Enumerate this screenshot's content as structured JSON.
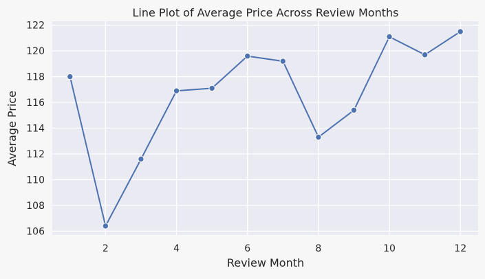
{
  "chart_data": {
    "type": "line",
    "title": "Line Plot of Average Price Across Review Months",
    "xlabel": "Review Month",
    "ylabel": "Average Price",
    "x": [
      1,
      2,
      3,
      4,
      5,
      6,
      7,
      8,
      9,
      10,
      11,
      12
    ],
    "series": [
      {
        "name": "Average Price",
        "values": [
          118.0,
          106.4,
          111.6,
          116.9,
          117.1,
          119.6,
          119.2,
          113.3,
          115.4,
          121.1,
          119.7,
          121.5
        ]
      }
    ],
    "xlim": [
      0.5,
      12.5
    ],
    "ylim": [
      105.7,
      122.3
    ],
    "xticks": [
      2,
      4,
      6,
      8,
      10,
      12
    ],
    "yticks": [
      106,
      108,
      110,
      112,
      114,
      116,
      118,
      120,
      122
    ],
    "grid": true,
    "colors": {
      "line": "#4c72b0",
      "plot_bg": "#eaeaf2",
      "grid": "#ffffff"
    }
  }
}
